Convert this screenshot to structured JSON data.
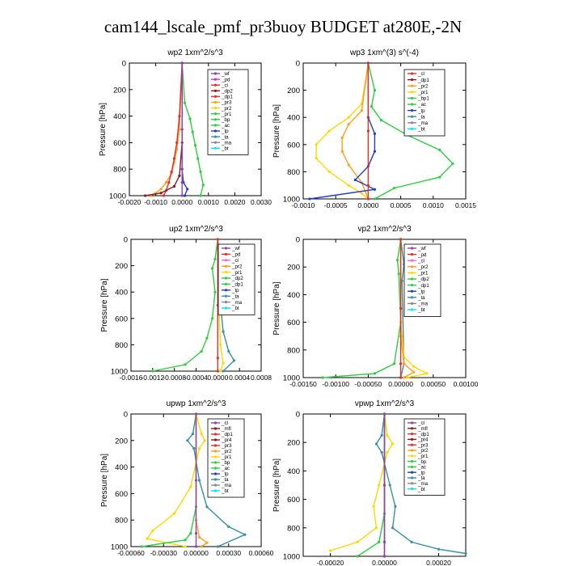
{
  "title": "cam144_lscale_pmf_pr3buoy  BUDGET at280E,-2N",
  "ylabel": "Pressure [hPa]",
  "colors": {
    "purple": "#8e44ad",
    "red": "#e0302a",
    "darkred": "#8b1a1a",
    "gold": "#ffd700",
    "orange": "#ff9f1a",
    "green": "#2ecc40",
    "blue": "#1f3fbf",
    "teal": "#3a8fa0",
    "cyan": "#00e5ff",
    "magenta": "#cc33cc",
    "pink": "#ff66cc",
    "gray": "#888888",
    "black": "#111111"
  },
  "chart_data": [
    {
      "type": "line",
      "title": "wp2   1xm^2/s^3",
      "xlim": [
        -0.002,
        0.003
      ],
      "ylim": [
        1000,
        0
      ],
      "xticks": [
        "-0.0020",
        "-0.0010",
        "0.0000",
        "0.0010",
        "0.0020",
        "0.0030"
      ],
      "xtick_values": [
        -0.002,
        -0.001,
        0,
        0.001,
        0.002,
        0.003
      ],
      "yticks": [
        "0",
        "200",
        "400",
        "600",
        "800",
        "1000"
      ],
      "ytick_values": [
        0,
        200,
        400,
        600,
        800,
        1000
      ],
      "legend": [
        "_wf",
        "_pd",
        "_cl",
        "_dp2",
        "_dp1",
        "_pr3",
        "_pr2",
        "_pr1",
        "_bp",
        "_ac",
        "_tp",
        "_ta",
        "_ma",
        "_bt"
      ],
      "legend_colors": [
        "purple",
        "magenta",
        "red",
        "darkred",
        "red",
        "orange",
        "gold",
        "green",
        "green",
        "green",
        "blue",
        "teal",
        "gray",
        "cyan"
      ],
      "series": [
        {
          "color": "green",
          "x": [
            0,
            0.0001,
            0.0003,
            0.0004,
            0.0005,
            0.0006,
            0.0007,
            0.0008,
            0.0007
          ],
          "y": [
            0,
            300,
            420,
            520,
            620,
            720,
            820,
            920,
            1000
          ]
        },
        {
          "color": "orange",
          "x": [
            0,
            -0.0001,
            -0.0002,
            -0.0003,
            -0.0004,
            -0.0006,
            -0.0008,
            -0.001,
            -0.0012
          ],
          "y": [
            0,
            500,
            650,
            750,
            830,
            900,
            950,
            980,
            1000
          ]
        },
        {
          "color": "red",
          "x": [
            0,
            -0.0001,
            -0.0002,
            -0.0003,
            -0.0004,
            -0.0005,
            -0.0006,
            -0.0007
          ],
          "y": [
            0,
            400,
            600,
            720,
            820,
            900,
            960,
            1000
          ]
        },
        {
          "color": "darkred",
          "x": [
            0,
            0,
            -0.0001,
            -0.0003,
            -0.0008,
            -0.0014
          ],
          "y": [
            0,
            600,
            850,
            930,
            980,
            1000
          ]
        },
        {
          "color": "blue",
          "x": [
            0,
            0,
            5e-05,
            0.0002,
            0.0001
          ],
          "y": [
            0,
            800,
            900,
            950,
            1000
          ]
        },
        {
          "color": "purple",
          "x": [
            0,
            0,
            0,
            0
          ],
          "y": [
            0,
            500,
            900,
            1000
          ]
        }
      ]
    },
    {
      "type": "line",
      "title": "wp3   1xm^(3) s^(-4)",
      "xlim": [
        -0.001,
        0.0015
      ],
      "ylim": [
        1000,
        0
      ],
      "xticks": [
        "-0.0010",
        "-0.0005",
        "0.0000",
        "0.0005",
        "0.0010",
        "0.0015"
      ],
      "xtick_values": [
        -0.001,
        -0.0005,
        0,
        0.0005,
        0.001,
        0.0015
      ],
      "yticks": [
        "0",
        "200",
        "400",
        "600",
        "800",
        "1000"
      ],
      "ytick_values": [
        0,
        200,
        400,
        600,
        800,
        1000
      ],
      "legend": [
        "_cl",
        "_dp1",
        "_pr2",
        "_pr1",
        "_bp1",
        "_ac",
        "_tp",
        "_ta",
        "_ma",
        "_bt"
      ],
      "legend_colors": [
        "red",
        "darkred",
        "orange",
        "gold",
        "green",
        "green",
        "blue",
        "teal",
        "gray",
        "cyan"
      ],
      "series": [
        {
          "color": "green",
          "x": [
            0,
            0.0001,
            5e-05,
            0.0002,
            0.0006,
            0.0011,
            0.0013,
            0.0011,
            0.0004,
            0.0001
          ],
          "y": [
            0,
            200,
            320,
            420,
            530,
            640,
            740,
            840,
            920,
            1000
          ]
        },
        {
          "color": "gold",
          "x": [
            0,
            -0.0001,
            -0.0003,
            -0.0006,
            -0.0008,
            -0.0008,
            -0.0006,
            -0.0003,
            -0.0001,
            0
          ],
          "y": [
            0,
            300,
            400,
            500,
            600,
            700,
            800,
            900,
            960,
            1000
          ]
        },
        {
          "color": "orange",
          "x": [
            0,
            -0.0001,
            -0.0003,
            -0.0004,
            -0.0004,
            -0.0003,
            -0.0001,
            0
          ],
          "y": [
            0,
            350,
            450,
            550,
            650,
            750,
            880,
            1000
          ]
        },
        {
          "color": "blue",
          "x": [
            0,
            0,
            0.0001,
            0.0001,
            0,
            -0.0002,
            0.0001,
            -0.0009
          ],
          "y": [
            0,
            400,
            520,
            650,
            760,
            860,
            930,
            1000
          ]
        },
        {
          "color": "red",
          "x": [
            0,
            0,
            0,
            0
          ],
          "y": [
            0,
            500,
            900,
            1000
          ]
        }
      ]
    },
    {
      "type": "line",
      "title": "up2   1xm^2/s^3",
      "xlim": [
        -0.0016,
        0.0008
      ],
      "ylim": [
        1000,
        0
      ],
      "xticks": [
        "-0.0016",
        "-0.0012",
        "-0.0008",
        "-0.0004",
        "0.0000",
        "0.0004",
        "0.0008"
      ],
      "xtick_values": [
        -0.0016,
        -0.0012,
        -0.0008,
        -0.0004,
        0,
        0.0004,
        0.0008
      ],
      "yticks": [
        "0",
        "200",
        "400",
        "600",
        "800",
        "1000"
      ],
      "ytick_values": [
        0,
        200,
        400,
        600,
        800,
        1000
      ],
      "legend": [
        "_wf",
        "_pd",
        "_cl",
        "_pr2",
        "_pr1",
        "_dp2",
        "_dp1",
        "_tp",
        "_ta",
        "_ma",
        "_bt"
      ],
      "legend_colors": [
        "purple",
        "red",
        "pink",
        "orange",
        "gold",
        "green",
        "green",
        "blue",
        "teal",
        "gray",
        "cyan"
      ],
      "series": [
        {
          "color": "green",
          "x": [
            0,
            -5e-05,
            -0.0001,
            -5e-05,
            -0.0001,
            -0.0002,
            -0.0003,
            -0.0006,
            -0.0012
          ],
          "y": [
            0,
            150,
            220,
            400,
            600,
            750,
            850,
            950,
            1000
          ]
        },
        {
          "color": "teal",
          "x": [
            0,
            5e-05,
            3e-05,
            0.0001,
            0.0002,
            0.0003,
            0.0001
          ],
          "y": [
            0,
            200,
            400,
            700,
            850,
            920,
            1000
          ]
        },
        {
          "color": "gold",
          "x": [
            0,
            2e-05,
            5e-05,
            0.0001,
            5e-05
          ],
          "y": [
            0,
            500,
            800,
            940,
            1000
          ]
        },
        {
          "color": "red",
          "x": [
            0,
            0,
            0,
            0
          ],
          "y": [
            0,
            500,
            900,
            1000
          ]
        }
      ]
    },
    {
      "type": "line",
      "title": "vp2   1xm^2/s^3",
      "xlim": [
        -0.0015,
        0.001
      ],
      "ylim": [
        1000,
        0
      ],
      "xticks": [
        "-0.00150",
        "-0.00100",
        "-0.00050",
        "0.00000",
        "0.00050",
        "0.00100"
      ],
      "xtick_values": [
        -0.0015,
        -0.001,
        -0.0005,
        0,
        0.0005,
        0.001
      ],
      "yticks": [
        "0",
        "200",
        "400",
        "600",
        "800",
        "1000"
      ],
      "ytick_values": [
        0,
        200,
        400,
        600,
        800,
        1000
      ],
      "legend": [
        "_wf",
        "_pd",
        "_cl",
        "_pr2",
        "_pr1",
        "_dp2",
        "_dp1",
        "_tp",
        "_ta",
        "_ma",
        "_bt"
      ],
      "legend_colors": [
        "purple",
        "red",
        "pink",
        "orange",
        "gold",
        "green",
        "green",
        "blue",
        "teal",
        "gray",
        "cyan"
      ],
      "series": [
        {
          "color": "green",
          "x": [
            0,
            -5e-05,
            -3e-05,
            0,
            -0.0001,
            -0.0004,
            -0.0012
          ],
          "y": [
            0,
            150,
            250,
            600,
            900,
            970,
            1000
          ]
        },
        {
          "color": "teal",
          "x": [
            0,
            5e-05,
            2e-05,
            5e-05,
            0
          ],
          "y": [
            0,
            180,
            300,
            900,
            1000
          ]
        },
        {
          "color": "gold",
          "x": [
            0,
            0,
            5e-05,
            0.0002,
            0.0004,
            0.0001
          ],
          "y": [
            0,
            600,
            850,
            920,
            970,
            1000
          ]
        },
        {
          "color": "orange",
          "x": [
            0,
            0,
            5e-05,
            0.0002,
            5e-05
          ],
          "y": [
            0,
            700,
            900,
            960,
            1000
          ]
        },
        {
          "color": "red",
          "x": [
            0,
            0,
            0,
            0
          ],
          "y": [
            0,
            500,
            900,
            1000
          ]
        }
      ]
    },
    {
      "type": "line",
      "title": "upwp   1xm^2/s^3",
      "xlim": [
        -0.0006,
        0.0006
      ],
      "ylim": [
        1000,
        0
      ],
      "xticks": [
        "-0.00060",
        "-0.00030",
        "0.00000",
        "0.00030",
        "0.00060"
      ],
      "xtick_values": [
        -0.0006,
        -0.0003,
        0,
        0.0003,
        0.0006
      ],
      "yticks": [
        "0",
        "200",
        "400",
        "600",
        "800",
        "1000"
      ],
      "ytick_values": [
        0,
        200,
        400,
        600,
        800,
        1000
      ],
      "legend": [
        "_cl",
        "_mfl",
        "_dp1",
        "_pr4",
        "_pr3",
        "_pr2",
        "_pr1",
        "_bp",
        "_ac",
        "_tp",
        "_ta",
        "_ma",
        "_bt"
      ],
      "legend_colors": [
        "purple",
        "darkred",
        "red",
        "darkred",
        "red",
        "orange",
        "gold",
        "green",
        "green",
        "blue",
        "teal",
        "gray",
        "cyan"
      ],
      "series": [
        {
          "color": "teal",
          "x": [
            0,
            -3e-05,
            -8e-05,
            -2e-05,
            3e-05,
            0.0001,
            0.0003,
            0.00045,
            0.0002
          ],
          "y": [
            0,
            150,
            200,
            260,
            500,
            700,
            850,
            910,
            1000
          ]
        },
        {
          "color": "gold",
          "x": [
            0,
            5e-05,
            8e-05,
            3e-05,
            -5e-05,
            -0.0002,
            -0.0004,
            -0.00045,
            -0.0001
          ],
          "y": [
            0,
            150,
            200,
            260,
            550,
            750,
            880,
            940,
            1000
          ]
        },
        {
          "color": "green",
          "x": [
            0,
            0,
            -5e-05,
            -0.0001,
            -0.0005
          ],
          "y": [
            0,
            700,
            900,
            950,
            1000
          ]
        },
        {
          "color": "orange",
          "x": [
            0,
            0,
            3e-05,
            0.0001,
            5e-05
          ],
          "y": [
            0,
            800,
            930,
            970,
            1000
          ]
        },
        {
          "color": "purple",
          "x": [
            0,
            0,
            0,
            0
          ],
          "y": [
            0,
            500,
            900,
            1000
          ]
        }
      ]
    },
    {
      "type": "line",
      "title": "vpwp   1xm^2/s^3",
      "xlim": [
        -0.0003,
        0.0003
      ],
      "ylim": [
        1000,
        0
      ],
      "xticks": [
        "-0.00020",
        "0.00000",
        "0.00020"
      ],
      "xtick_values": [
        -0.0002,
        0,
        0.0002
      ],
      "yticks": [
        "0",
        "200",
        "400",
        "600",
        "800",
        "1000"
      ],
      "ytick_values": [
        0,
        200,
        400,
        600,
        800,
        1000
      ],
      "legend": [
        "_cl",
        "_mfl",
        "_dp1",
        "_pr4",
        "_pr3",
        "_pr2",
        "_pr1",
        "_bp",
        "_ac",
        "_tp",
        "_ta",
        "_ma",
        "_bt"
      ],
      "legend_colors": [
        "purple",
        "darkred",
        "red",
        "darkred",
        "red",
        "orange",
        "gold",
        "green",
        "green",
        "blue",
        "teal",
        "gray",
        "cyan"
      ],
      "series": [
        {
          "color": "teal",
          "x": [
            0,
            -1e-05,
            -3e-05,
            -1e-05,
            2e-05,
            4e-05,
            3e-05,
            0.0001,
            0.0002,
            0.0003
          ],
          "y": [
            0,
            150,
            210,
            270,
            500,
            650,
            800,
            900,
            950,
            980
          ]
        },
        {
          "color": "gold",
          "x": [
            0,
            1e-05,
            3e-05,
            1e-05,
            -2e-05,
            -4e-05,
            -3e-05,
            -0.0001,
            -0.0002
          ],
          "y": [
            0,
            150,
            210,
            270,
            500,
            650,
            800,
            900,
            960
          ]
        },
        {
          "color": "green",
          "x": [
            0,
            0,
            -2e-05,
            -0.0001
          ],
          "y": [
            0,
            700,
            900,
            1000
          ]
        },
        {
          "color": "darkred",
          "x": [
            0,
            0,
            0,
            0
          ],
          "y": [
            0,
            500,
            900,
            1000
          ]
        },
        {
          "color": "purple",
          "x": [
            0,
            0,
            0,
            0
          ],
          "y": [
            0,
            500,
            900,
            1000
          ]
        }
      ]
    }
  ]
}
